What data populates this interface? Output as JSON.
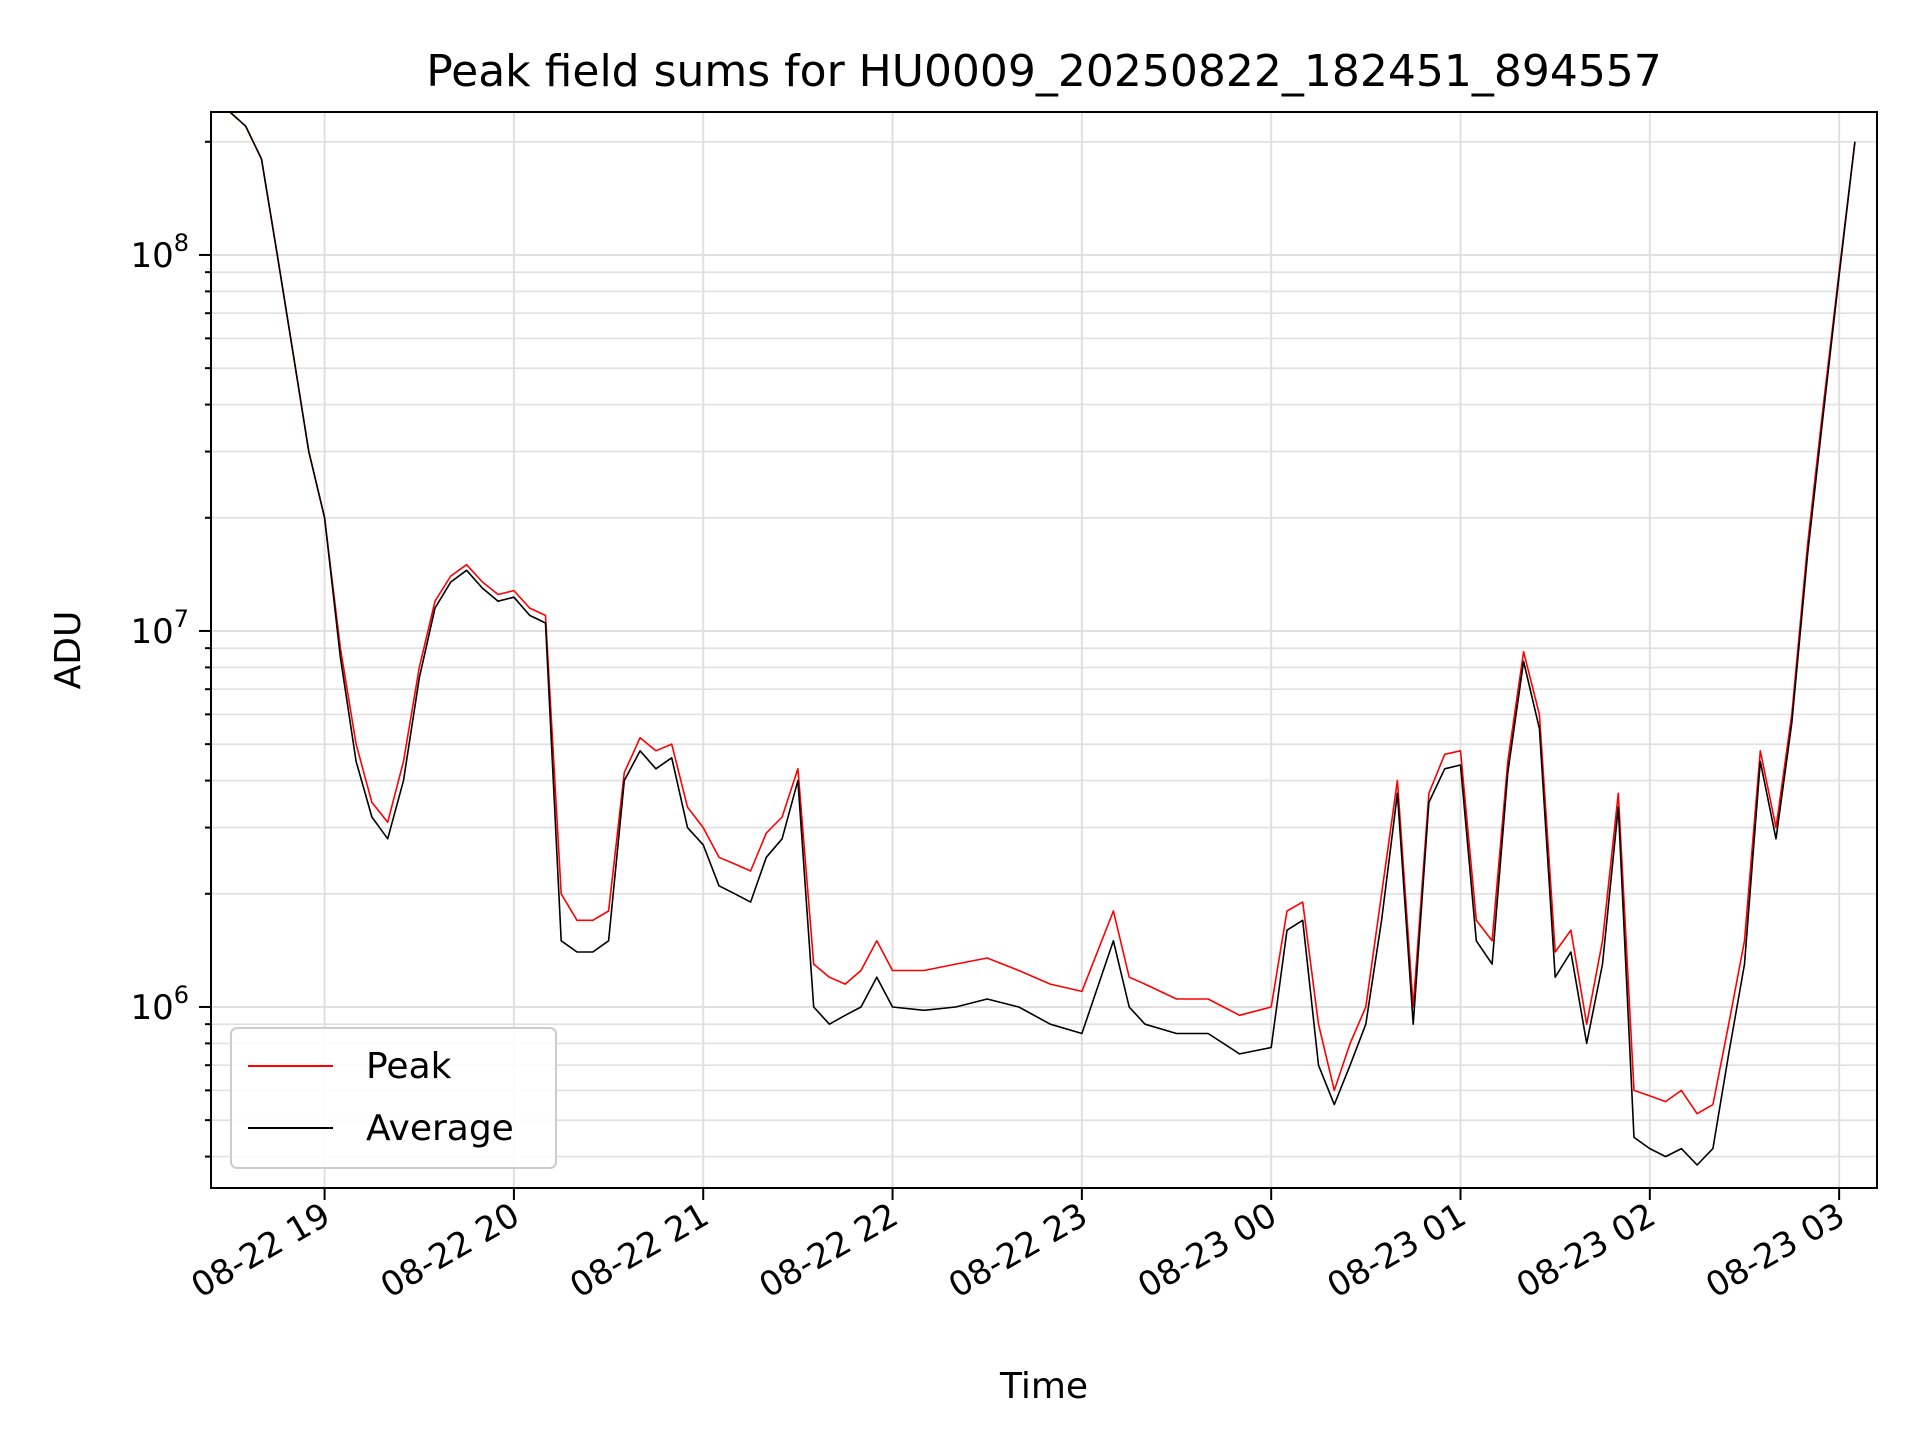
{
  "chart_data": {
    "type": "line",
    "title": "Peak field sums for HU0009_20250822_182451_894557",
    "xlabel": "Time",
    "ylabel": "ADU",
    "y_scale": "log",
    "ylim": [
      330000,
      240000000
    ],
    "xlim": [
      "08-22 18:24",
      "08-23 03:12"
    ],
    "x_ticks": [
      "08-22 19",
      "08-22 20",
      "08-22 21",
      "08-22 22",
      "08-22 23",
      "08-23 00",
      "08-23 01",
      "08-23 02",
      "08-23 03"
    ],
    "y_ticks": [
      {
        "base": "10",
        "exp": "6",
        "value": 1000000
      },
      {
        "base": "10",
        "exp": "7",
        "value": 10000000
      },
      {
        "base": "10",
        "exp": "8",
        "value": 100000000
      }
    ],
    "grid": true,
    "legend_position": "lower-left",
    "series": [
      {
        "name": "Peak",
        "color": "#ff0000",
        "x": [
          "08-22 18:30",
          "08-22 18:35",
          "08-22 18:40",
          "08-22 18:45",
          "08-22 18:50",
          "08-22 18:55",
          "08-22 19:00",
          "08-22 19:05",
          "08-22 19:10",
          "08-22 19:15",
          "08-22 19:20",
          "08-22 19:25",
          "08-22 19:30",
          "08-22 19:35",
          "08-22 19:40",
          "08-22 19:45",
          "08-22 19:50",
          "08-22 19:55",
          "08-22 20:00",
          "08-22 20:05",
          "08-22 20:10",
          "08-22 20:15",
          "08-22 20:20",
          "08-22 20:25",
          "08-22 20:30",
          "08-22 20:35",
          "08-22 20:40",
          "08-22 20:45",
          "08-22 20:50",
          "08-22 20:55",
          "08-22 21:00",
          "08-22 21:05",
          "08-22 21:10",
          "08-22 21:15",
          "08-22 21:20",
          "08-22 21:25",
          "08-22 21:30",
          "08-22 21:35",
          "08-22 21:40",
          "08-22 21:45",
          "08-22 21:50",
          "08-22 21:55",
          "08-22 22:00",
          "08-22 22:10",
          "08-22 22:20",
          "08-22 22:30",
          "08-22 22:40",
          "08-22 22:50",
          "08-22 23:00",
          "08-22 23:10",
          "08-22 23:15",
          "08-22 23:20",
          "08-22 23:30",
          "08-22 23:40",
          "08-22 23:50",
          "08-23 00:00",
          "08-23 00:05",
          "08-23 00:10",
          "08-23 00:15",
          "08-23 00:20",
          "08-23 00:25",
          "08-23 00:30",
          "08-23 00:35",
          "08-23 00:40",
          "08-23 00:45",
          "08-23 00:50",
          "08-23 00:55",
          "08-23 01:00",
          "08-23 01:05",
          "08-23 01:10",
          "08-23 01:15",
          "08-23 01:20",
          "08-23 01:25",
          "08-23 01:30",
          "08-23 01:35",
          "08-23 01:40",
          "08-23 01:45",
          "08-23 01:50",
          "08-23 01:55",
          "08-23 02:00",
          "08-23 02:05",
          "08-23 02:10",
          "08-23 02:15",
          "08-23 02:20",
          "08-23 02:25",
          "08-23 02:30",
          "08-23 02:35",
          "08-23 02:40",
          "08-23 02:45",
          "08-23 02:50",
          "08-23 02:55",
          "08-23 03:00",
          "08-23 03:05"
        ],
        "values": [
          240000000,
          220000000,
          180000000,
          100000000,
          55000000,
          30000000,
          20000000,
          9000000,
          5000000,
          3500000,
          3100000,
          4500000,
          8000000,
          12000000,
          14000000,
          15000000,
          13500000,
          12500000,
          12800000,
          11500000,
          11000000,
          2000000,
          1700000,
          1700000,
          1800000,
          4200000,
          5200000,
          4800000,
          5000000,
          3400000,
          3000000,
          2500000,
          2400000,
          2300000,
          2900000,
          3200000,
          4300000,
          1300000,
          1200000,
          1150000,
          1250000,
          1500000,
          1250000,
          1250000,
          1300000,
          1350000,
          1250000,
          1150000,
          1100000,
          1800000,
          1200000,
          1150000,
          1050000,
          1050000,
          950000,
          1000000,
          1800000,
          1900000,
          900000,
          600000,
          800000,
          1000000,
          2000000,
          4000000,
          1000000,
          3700000,
          4700000,
          4800000,
          1700000,
          1500000,
          4500000,
          8800000,
          6000000,
          1400000,
          1600000,
          900000,
          1500000,
          3700000,
          600000,
          580000,
          560000,
          600000,
          520000,
          550000,
          900000,
          1500000,
          4800000,
          3000000,
          6000000,
          17000000,
          40000000,
          90000000,
          200000000
        ]
      },
      {
        "name": "Average",
        "color": "#000000",
        "x": [
          "08-22 18:30",
          "08-22 18:35",
          "08-22 18:40",
          "08-22 18:45",
          "08-22 18:50",
          "08-22 18:55",
          "08-22 19:00",
          "08-22 19:05",
          "08-22 19:10",
          "08-22 19:15",
          "08-22 19:20",
          "08-22 19:25",
          "08-22 19:30",
          "08-22 19:35",
          "08-22 19:40",
          "08-22 19:45",
          "08-22 19:50",
          "08-22 19:55",
          "08-22 20:00",
          "08-22 20:05",
          "08-22 20:10",
          "08-22 20:15",
          "08-22 20:20",
          "08-22 20:25",
          "08-22 20:30",
          "08-22 20:35",
          "08-22 20:40",
          "08-22 20:45",
          "08-22 20:50",
          "08-22 20:55",
          "08-22 21:00",
          "08-22 21:05",
          "08-22 21:10",
          "08-22 21:15",
          "08-22 21:20",
          "08-22 21:25",
          "08-22 21:30",
          "08-22 21:35",
          "08-22 21:40",
          "08-22 21:45",
          "08-22 21:50",
          "08-22 21:55",
          "08-22 22:00",
          "08-22 22:10",
          "08-22 22:20",
          "08-22 22:30",
          "08-22 22:40",
          "08-22 22:50",
          "08-22 23:00",
          "08-22 23:10",
          "08-22 23:15",
          "08-22 23:20",
          "08-22 23:30",
          "08-22 23:40",
          "08-22 23:50",
          "08-23 00:00",
          "08-23 00:05",
          "08-23 00:10",
          "08-23 00:15",
          "08-23 00:20",
          "08-23 00:25",
          "08-23 00:30",
          "08-23 00:35",
          "08-23 00:40",
          "08-23 00:45",
          "08-23 00:50",
          "08-23 00:55",
          "08-23 01:00",
          "08-23 01:05",
          "08-23 01:10",
          "08-23 01:15",
          "08-23 01:20",
          "08-23 01:25",
          "08-23 01:30",
          "08-23 01:35",
          "08-23 01:40",
          "08-23 01:45",
          "08-23 01:50",
          "08-23 01:55",
          "08-23 02:00",
          "08-23 02:05",
          "08-23 02:10",
          "08-23 02:15",
          "08-23 02:20",
          "08-23 02:25",
          "08-23 02:30",
          "08-23 02:35",
          "08-23 02:40",
          "08-23 02:45",
          "08-23 02:50",
          "08-23 02:55",
          "08-23 03:00",
          "08-23 03:05"
        ],
        "values": [
          240000000,
          220000000,
          180000000,
          100000000,
          55000000,
          30000000,
          20000000,
          8500000,
          4500000,
          3200000,
          2800000,
          4000000,
          7500000,
          11500000,
          13500000,
          14500000,
          13000000,
          12000000,
          12300000,
          11000000,
          10500000,
          1500000,
          1400000,
          1400000,
          1500000,
          4000000,
          4800000,
          4300000,
          4600000,
          3000000,
          2700000,
          2100000,
          2000000,
          1900000,
          2500000,
          2800000,
          4000000,
          1000000,
          900000,
          950000,
          1000000,
          1200000,
          1000000,
          980000,
          1000000,
          1050000,
          1000000,
          900000,
          850000,
          1500000,
          1000000,
          900000,
          850000,
          850000,
          750000,
          780000,
          1600000,
          1700000,
          700000,
          550000,
          700000,
          900000,
          1700000,
          3700000,
          900000,
          3500000,
          4300000,
          4400000,
          1500000,
          1300000,
          4200000,
          8300000,
          5500000,
          1200000,
          1400000,
          800000,
          1300000,
          3400000,
          450000,
          420000,
          400000,
          420000,
          380000,
          420000,
          750000,
          1300000,
          4500000,
          2800000,
          5700000,
          16000000,
          38000000,
          88000000,
          200000000
        ]
      }
    ]
  }
}
